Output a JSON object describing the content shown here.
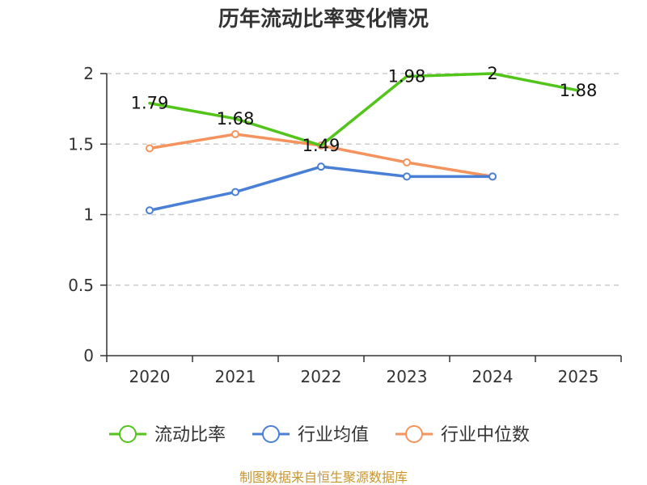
{
  "chart_data": {
    "type": "line",
    "title": "历年流动比率变化情况",
    "categories": [
      "2020",
      "2021",
      "2022",
      "2023",
      "2024",
      "2025"
    ],
    "y_ticks": [
      "0",
      "0.5",
      "1",
      "1.5",
      "2"
    ],
    "ylim": [
      0,
      2
    ],
    "grid": true,
    "legend_position": "bottom",
    "series": [
      {
        "name": "流动比率",
        "color": "#52c41a",
        "values": [
          1.79,
          1.68,
          1.49,
          1.98,
          2.0,
          1.88
        ],
        "labels": [
          "1.79",
          "1.68",
          "1.49",
          "1.98",
          "2",
          "1.88"
        ],
        "show_labels": true,
        "show_points": false
      },
      {
        "name": "行业均值",
        "color": "#4a7fd6",
        "values": [
          1.03,
          1.16,
          1.34,
          1.27,
          1.27,
          null
        ],
        "show_labels": false,
        "show_points": true
      },
      {
        "name": "行业中位数",
        "color": "#f4935e",
        "values": [
          1.47,
          1.57,
          1.49,
          1.37,
          1.27,
          null
        ],
        "show_labels": false,
        "show_points": true
      }
    ],
    "source": "制图数据来自恒生聚源数据库",
    "source_color": "#c8962e"
  }
}
